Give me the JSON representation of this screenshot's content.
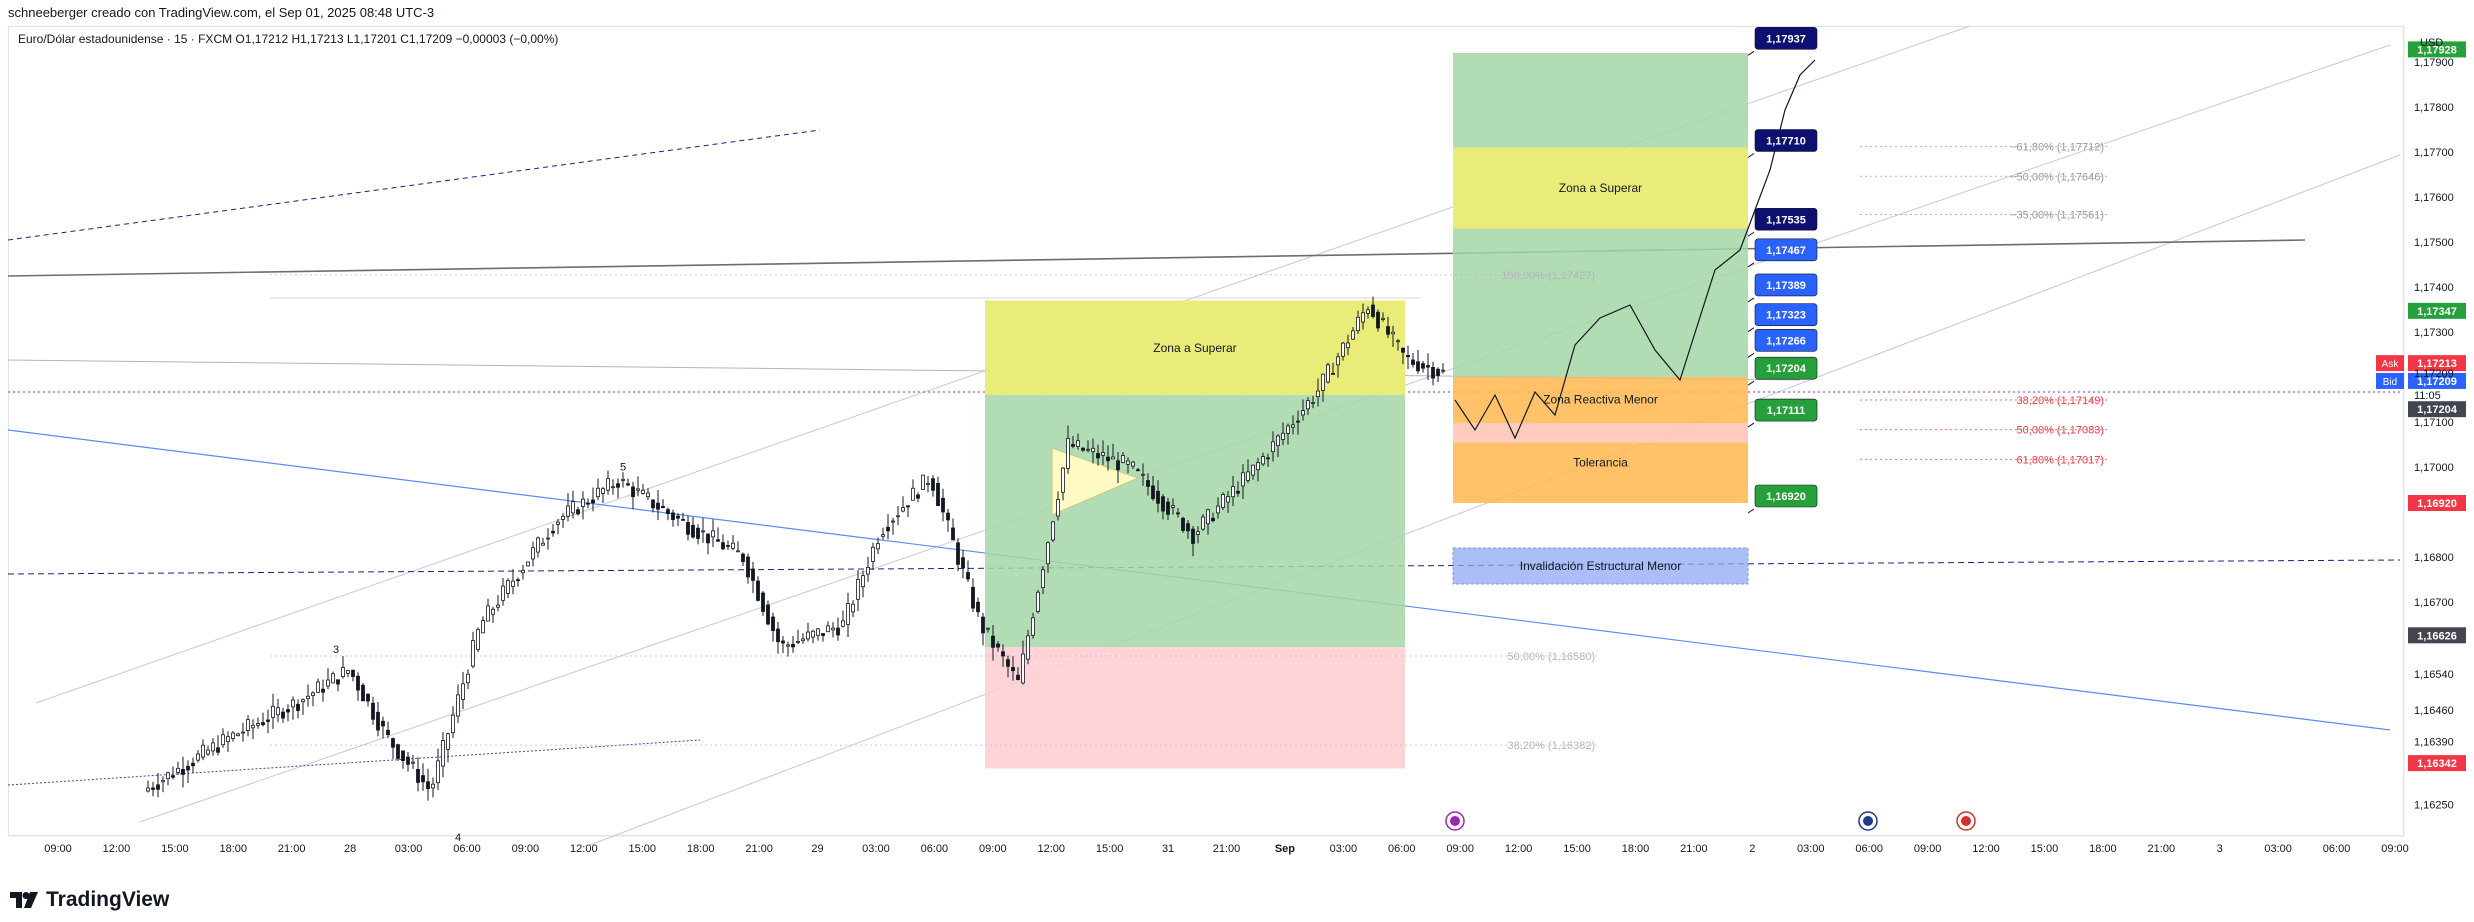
{
  "header": {
    "credit": "schneeberger creado con TradingView.com, el Sep 01, 2025 08:48 UTC-3"
  },
  "legend": {
    "text": "Euro/Dólar estadounidense · 15 · FXCM  O1,17212  H1,17213  L1,17201  C1,17209  −0,00003 (−0,00%)"
  },
  "footer": {
    "brand": "TradingView"
  },
  "colors": {
    "up": "#131722",
    "down": "#131722",
    "green_zone": "#a5d6a7",
    "red_zone": "#ffcdd2",
    "yellow_zone": "#f3ef6f",
    "orange_zone": "#ffb74d",
    "blue_zone": "#90a9f4",
    "navy_tag": "#0d1070",
    "blue_tag": "#2962ff",
    "green_tag": "#26a03a",
    "red_tag": "#f23645",
    "gray_tag": "#434651"
  },
  "icons": [
    "lightning-icon",
    "globe-icon",
    "us-flag-icon"
  ],
  "chart_data": {
    "type": "candlestick",
    "symbol": "Euro/Dólar estadounidense",
    "interval": "15",
    "broker": "FXCM",
    "ohlc": {
      "O": "1,17212",
      "H": "1,17213",
      "L": "1,17201",
      "C": "1,17209",
      "change": "−0,00003 (−0,00%)"
    },
    "price_axis": {
      "currency": "USD",
      "range": [
        1.1618,
        1.1798
      ],
      "ticks": [
        {
          "value": 1.179,
          "label": "1,17900"
        },
        {
          "value": 1.178,
          "label": "1,17800"
        },
        {
          "value": 1.177,
          "label": "1,17700"
        },
        {
          "value": 1.176,
          "label": "1,17600"
        },
        {
          "value": 1.175,
          "label": "1,17500"
        },
        {
          "value": 1.174,
          "label": "1,17400"
        },
        {
          "value": 1.173,
          "label": "1,17300"
        },
        {
          "value": 1.171,
          "label": "1,17100"
        },
        {
          "value": 1.17,
          "label": "1,17000"
        },
        {
          "value": 1.168,
          "label": "1,16800"
        },
        {
          "value": 1.167,
          "label": "1,16700"
        },
        {
          "value": 1.1654,
          "label": "1,16540"
        },
        {
          "value": 1.1646,
          "label": "1,16460"
        },
        {
          "value": 1.1639,
          "label": "1,16390"
        },
        {
          "value": 1.1625,
          "label": "1,16250"
        }
      ],
      "tags": [
        {
          "value": 1.17928,
          "label": "1,17928",
          "kind": "green"
        },
        {
          "value": 1.17347,
          "label": "1,17347",
          "kind": "green"
        },
        {
          "value": 1.17213,
          "label": "1,17213",
          "prefix": "Ask",
          "kind": "red"
        },
        {
          "value": 1.17209,
          "label": "1,17209",
          "prefix": "Bid",
          "kind": "blue"
        },
        {
          "value": 1.17209,
          "label": "1,17209",
          "kind": "plain"
        },
        {
          "value": 1.17204,
          "label": "11:05",
          "kind": "plain"
        },
        {
          "value": 1.17204,
          "label": "1,17204",
          "kind": "gray"
        },
        {
          "value": 1.1692,
          "label": "1,16920",
          "kind": "red"
        },
        {
          "value": 1.16626,
          "label": "1,16626",
          "kind": "gray"
        },
        {
          "value": 1.16342,
          "label": "1,16342",
          "kind": "red"
        }
      ]
    },
    "time_axis": {
      "labels": [
        "09:00",
        "12:00",
        "15:00",
        "18:00",
        "21:00",
        "28",
        "03:00",
        "06:00",
        "09:00",
        "12:00",
        "15:00",
        "18:00",
        "21:00",
        "29",
        "03:00",
        "06:00",
        "09:00",
        "12:00",
        "15:00",
        "31",
        "21:00",
        "Sep",
        "03:00",
        "06:00",
        "09:00",
        "12:00",
        "15:00",
        "18:00",
        "21:00",
        "2",
        "03:00",
        "06:00",
        "09:00",
        "12:00",
        "15:00",
        "18:00",
        "21:00",
        "3",
        "03:00",
        "06:00",
        "09:00"
      ],
      "bold_labels": [
        "Sep"
      ]
    },
    "wave_labels": [
      {
        "label": "3",
        "value": 1.1656
      },
      {
        "label": "4",
        "value": 1.162
      },
      {
        "label": "5",
        "value": 1.1697
      }
    ],
    "zones": [
      {
        "label": "Zona a Superar",
        "from": 1.1716,
        "to": 1.1737,
        "color": "yellow"
      },
      {
        "label": "Zona a Superar",
        "from": 1.1753,
        "to": 1.1771,
        "color": "yellow"
      },
      {
        "label": "Zona Reactiva Menor",
        "from": 1.171,
        "to": 1.172,
        "color": "orange"
      },
      {
        "label": "Tolerancia",
        "from": 1.1692,
        "to": 1.171,
        "color": "orange"
      },
      {
        "label": "Invalidación Estructural Menor",
        "from": 1.1674,
        "to": 1.1682,
        "color": "blue"
      }
    ],
    "fib_levels": [
      {
        "label": "100,00% (1,17427)",
        "value": 1.17427
      },
      {
        "label": "−61,80% (1,17712)",
        "value": 1.17712
      },
      {
        "label": "−50,00% (1,17646)",
        "value": 1.17646
      },
      {
        "label": "−35,00% (1,17561)",
        "value": 1.17561
      },
      {
        "label": "38,20% (1,17149)",
        "value": 1.17149
      },
      {
        "label": "50,00% (1,17083)",
        "value": 1.17083
      },
      {
        "label": "61,80% (1,17017)",
        "value": 1.17017
      },
      {
        "label": "50,00% (1,16580)",
        "value": 1.1658
      },
      {
        "label": "38,20% (1,16382)",
        "value": 1.16382
      }
    ],
    "target_labels": [
      {
        "label": "1,17937",
        "value": 1.17937,
        "kind": "navy"
      },
      {
        "label": "1,17710",
        "value": 1.1771,
        "kind": "navy"
      },
      {
        "label": "1,17535",
        "value": 1.17535,
        "kind": "navy"
      },
      {
        "label": "1,17467",
        "value": 1.17467,
        "kind": "blue"
      },
      {
        "label": "1,17389",
        "value": 1.17389,
        "kind": "blue"
      },
      {
        "label": "1,17323",
        "value": 1.17323,
        "kind": "blue"
      },
      {
        "label": "1,17266",
        "value": 1.17266,
        "kind": "blue"
      },
      {
        "label": "1,17204",
        "value": 1.17204,
        "kind": "green"
      },
      {
        "label": "1,17111",
        "value": 1.17111,
        "kind": "green"
      },
      {
        "label": "1,16920",
        "value": 1.1692,
        "kind": "green"
      }
    ],
    "series_summary": {
      "start": 1.1628,
      "wave3_high": 1.1655,
      "wave4_low": 1.1628,
      "wave5_high": 1.1697,
      "dip": 1.166,
      "retest": 1.1698,
      "low": 1.1652,
      "rally_high": 1.1736,
      "last": 1.17209
    }
  }
}
